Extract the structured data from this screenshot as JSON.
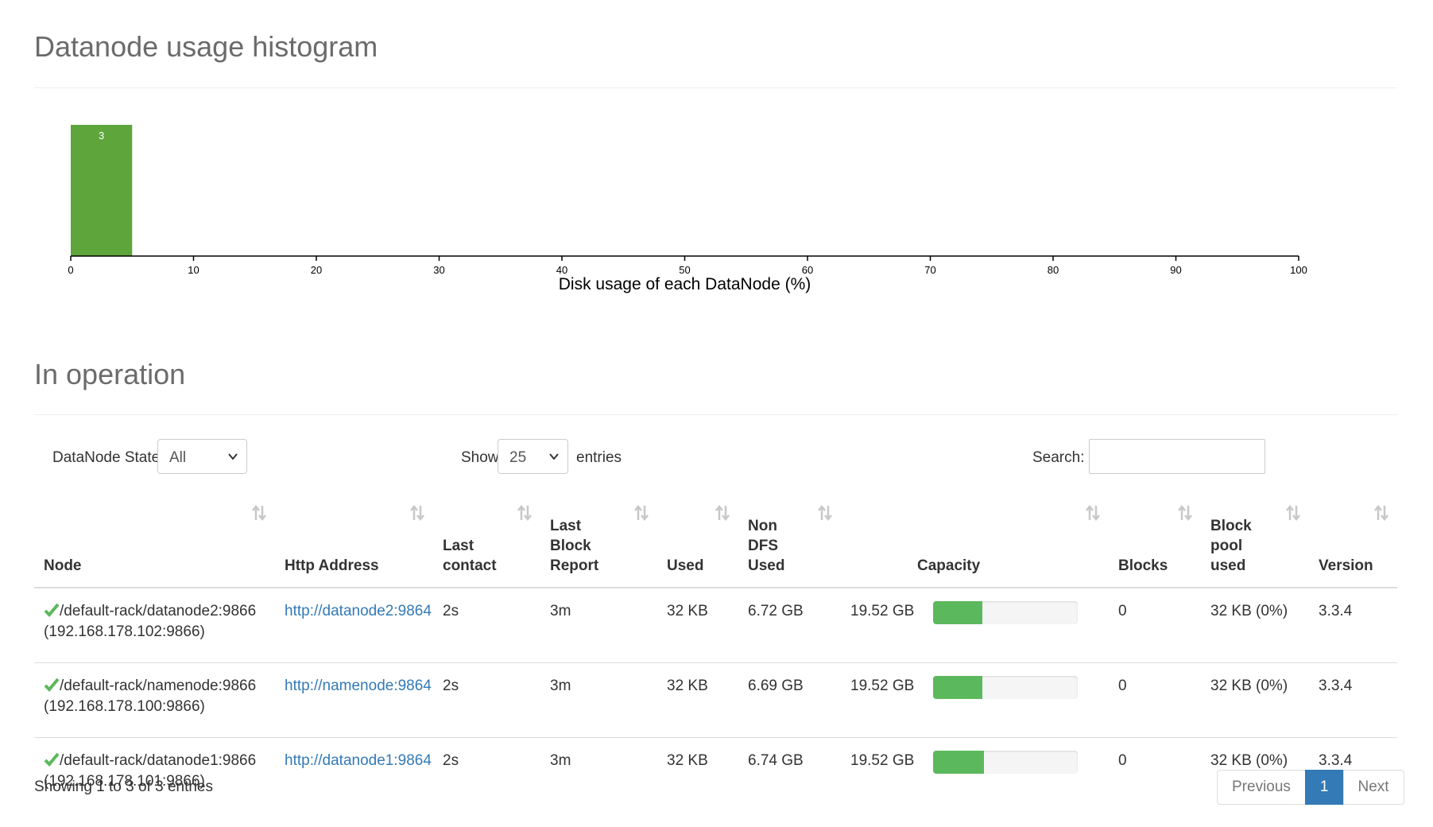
{
  "histogram_section": {
    "title": "Datanode usage histogram"
  },
  "chart_data": {
    "type": "bar",
    "title": "",
    "xlabel": "Disk usage of each DataNode (%)",
    "ylabel": "",
    "bins": [
      {
        "x0": 0,
        "x1": 5,
        "count": 3
      }
    ],
    "xlim": [
      0,
      100
    ],
    "xticks": [
      0,
      10,
      20,
      30,
      40,
      50,
      60,
      70,
      80,
      90,
      100
    ],
    "bar_color": "#5ea53b"
  },
  "operation_section": {
    "title": "In operation"
  },
  "controls": {
    "state_label": "DataNode State",
    "state_value": "All",
    "show_label": "Show",
    "show_value": "25",
    "entries_label": "entries",
    "search_label": "Search:",
    "search_value": ""
  },
  "table": {
    "columns": [
      {
        "label": "Node"
      },
      {
        "label": "Http Address"
      },
      {
        "label": "Last contact"
      },
      {
        "label": "Last Block Report"
      },
      {
        "label": "Used"
      },
      {
        "label": "Non DFS Used"
      },
      {
        "label": "Capacity"
      },
      {
        "label": "Blocks"
      },
      {
        "label": "Block pool used"
      },
      {
        "label": "Version"
      }
    ],
    "rows": [
      {
        "status": "in-service",
        "node": "/default-rack/datanode2:9866",
        "node_ip": "(192.168.178.102:9866)",
        "http": "http://datanode2:9864",
        "last_contact": "2s",
        "last_block_report": "3m",
        "used": "32 KB",
        "non_dfs_used": "6.72 GB",
        "capacity": "19.52 GB",
        "capacity_used_fraction": 0.34,
        "blocks": "0",
        "block_pool_used": "32 KB (0%)",
        "version": "3.3.4"
      },
      {
        "status": "in-service",
        "node": "/default-rack/namenode:9866",
        "node_ip": "(192.168.178.100:9866)",
        "http": "http://namenode:9864",
        "last_contact": "2s",
        "last_block_report": "3m",
        "used": "32 KB",
        "non_dfs_used": "6.69 GB",
        "capacity": "19.52 GB",
        "capacity_used_fraction": 0.34,
        "blocks": "0",
        "block_pool_used": "32 KB (0%)",
        "version": "3.3.4"
      },
      {
        "status": "in-service",
        "node": "/default-rack/datanode1:9866",
        "node_ip": "(192.168.178.101:9866)",
        "http": "http://datanode1:9864",
        "last_contact": "2s",
        "last_block_report": "3m",
        "used": "32 KB",
        "non_dfs_used": "6.74 GB",
        "capacity": "19.52 GB",
        "capacity_used_fraction": 0.35,
        "blocks": "0",
        "block_pool_used": "32 KB (0%)",
        "version": "3.3.4"
      }
    ]
  },
  "footer": {
    "info": "Showing 1 to 3 of 3 entries",
    "prev": "Previous",
    "page": "1",
    "next": "Next"
  },
  "colors": {
    "accent": "#337ab7",
    "progress": "#5cb85c",
    "check": "#5cb85c"
  }
}
